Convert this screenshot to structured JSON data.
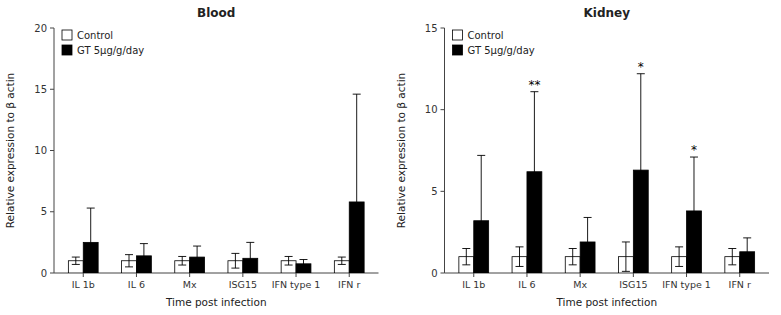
{
  "chart_data": [
    {
      "type": "bar",
      "title": "Blood",
      "categories": [
        "IL 1b",
        "IL 6",
        "Mx",
        "ISG15",
        "IFN type 1",
        "IFN r"
      ],
      "series": [
        {
          "name": "Control",
          "color": "white",
          "values": [
            1.0,
            1.0,
            1.0,
            1.0,
            1.0,
            1.0
          ],
          "errors": [
            0.3,
            0.5,
            0.35,
            0.6,
            0.35,
            0.3
          ]
        },
        {
          "name": "GT 5μg/g/day",
          "color": "black",
          "values": [
            2.5,
            1.4,
            1.3,
            1.2,
            0.75,
            5.8
          ],
          "errors": [
            2.8,
            1.0,
            0.9,
            1.3,
            0.35,
            8.8
          ]
        }
      ],
      "ylim": [
        0,
        20
      ],
      "yticks": [
        0,
        5,
        10,
        15,
        20
      ],
      "xlabel": "Time post infection",
      "ylabel": "Relative expression to β actin",
      "legend": "upper left"
    },
    {
      "type": "bar",
      "title": "Kidney",
      "categories": [
        "IL 1b",
        "IL 6",
        "Mx",
        "ISG15",
        "IFN type 1",
        "IFN r"
      ],
      "series": [
        {
          "name": "Control",
          "color": "white",
          "values": [
            1.0,
            1.0,
            1.0,
            1.0,
            1.0,
            1.0
          ],
          "errors": [
            0.5,
            0.6,
            0.5,
            0.9,
            0.6,
            0.5
          ]
        },
        {
          "name": "GT 5μg/g/day",
          "color": "black",
          "values": [
            3.2,
            6.2,
            1.9,
            6.3,
            3.8,
            1.3
          ],
          "errors": [
            4.0,
            4.9,
            1.5,
            5.9,
            3.3,
            0.85
          ],
          "significance": [
            null,
            "**",
            null,
            "*",
            "*",
            null
          ]
        }
      ],
      "ylim": [
        0,
        15
      ],
      "yticks": [
        0,
        5,
        10,
        15
      ],
      "xlabel": "Time post infection",
      "ylabel": "Relative expression to β actin",
      "legend": "upper left"
    }
  ]
}
